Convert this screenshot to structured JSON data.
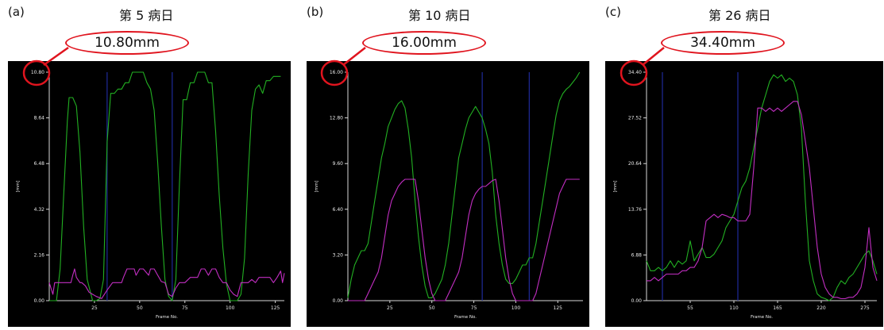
{
  "figure": {
    "colors": {
      "background": "#000000",
      "axes": "#d8d8d8",
      "text": "#e8e8e8",
      "highlight": "#e0141e",
      "series_green": "#22b022",
      "series_magenta": "#c22ec2",
      "marker": "#1e2a9a"
    }
  },
  "panels": [
    {
      "letter": "(a)",
      "title": "第 5 病日",
      "callout": "10.80mm"
    },
    {
      "letter": "(b)",
      "title": "第 10 病日",
      "callout": "16.00mm"
    },
    {
      "letter": "(c)",
      "title": "第 26 病日",
      "callout": "34.40mm"
    }
  ],
  "chart_data": [
    {
      "type": "line",
      "xlabel": "Frame No.",
      "ylabel": "[mm]",
      "xlim": [
        0,
        130
      ],
      "ylim": [
        0,
        10.8
      ],
      "xticks": [
        25,
        50,
        75,
        100,
        125
      ],
      "yticks": [
        "0.00",
        "2.16",
        "4.32",
        "6.48",
        "8.64",
        "10.80"
      ],
      "markers_x": [
        32,
        68
      ],
      "series": [
        {
          "color": "green",
          "x": [
            0,
            4,
            6,
            8,
            10,
            11,
            13,
            15,
            17,
            19,
            21,
            24,
            26,
            28,
            30,
            32,
            34,
            36,
            38,
            40,
            42,
            44,
            46,
            48,
            50,
            52,
            54,
            56,
            58,
            60,
            62,
            64,
            66,
            68,
            70,
            72,
            74,
            76,
            78,
            80,
            82,
            84,
            86,
            88,
            90,
            92,
            94,
            96,
            98,
            100,
            102,
            104,
            106,
            108,
            110,
            112,
            114,
            116,
            118,
            120,
            122,
            124,
            126,
            128
          ],
          "y": [
            0,
            0,
            1.5,
            5,
            8.5,
            9.6,
            9.6,
            9.2,
            7,
            3.5,
            1,
            0,
            0,
            0.1,
            1,
            7.5,
            9.8,
            9.8,
            10,
            10,
            10.3,
            10.3,
            10.8,
            10.8,
            10.8,
            10.8,
            10.3,
            10,
            9,
            6.5,
            3.5,
            1,
            0.2,
            0,
            1,
            5.5,
            9.5,
            9.5,
            10.3,
            10.3,
            10.8,
            10.8,
            10.8,
            10.3,
            10.3,
            8,
            5,
            2.5,
            0.8,
            0,
            0,
            0,
            0.3,
            2,
            6,
            9,
            10,
            10.2,
            9.8,
            10.4,
            10.4,
            10.6,
            10.6,
            10.6
          ]
        },
        {
          "color": "magenta",
          "x": [
            0,
            2,
            3,
            5,
            8,
            12,
            13,
            14,
            15,
            17,
            18,
            20,
            22,
            24,
            26,
            29,
            32,
            35,
            37,
            40,
            41,
            43,
            47,
            48,
            50,
            52,
            55,
            56,
            58,
            60,
            62,
            64,
            66,
            68,
            70,
            72,
            75,
            78,
            82,
            84,
            86,
            88,
            90,
            92,
            94,
            96,
            98,
            100,
            102,
            104,
            106,
            108,
            110,
            112,
            114,
            116,
            118,
            120,
            122,
            124,
            126,
            128,
            129,
            130
          ],
          "y": [
            0.85,
            0.3,
            0.85,
            0.85,
            0.85,
            0.85,
            1.2,
            1.5,
            1.1,
            0.85,
            0.85,
            0.7,
            0.4,
            0.3,
            0.2,
            0.1,
            0.5,
            0.85,
            0.85,
            0.85,
            1.1,
            1.5,
            1.5,
            1.2,
            1.5,
            1.5,
            1.2,
            1.5,
            1.5,
            1.2,
            0.9,
            0.85,
            0.3,
            0.2,
            0.6,
            0.85,
            0.85,
            1.1,
            1.1,
            1.5,
            1.5,
            1.2,
            1.5,
            1.5,
            1.1,
            0.85,
            0.85,
            0.5,
            0.3,
            0.2,
            0.85,
            0.85,
            0.85,
            1.0,
            0.85,
            1.1,
            1.1,
            1.1,
            1.1,
            0.85,
            1.1,
            1.4,
            0.85,
            1.3
          ]
        }
      ]
    },
    {
      "type": "line",
      "xlabel": "Frame No.",
      "ylabel": "[mm]",
      "xlim": [
        0,
        140
      ],
      "ylim": [
        0,
        16
      ],
      "xticks": [
        25,
        50,
        75,
        100,
        125
      ],
      "yticks": [
        "0.00",
        "3.20",
        "6.40",
        "9.60",
        "12.80",
        "16.00"
      ],
      "markers_x": [
        80,
        108
      ],
      "series": [
        {
          "color": "green",
          "x": [
            0,
            2,
            4,
            6,
            8,
            10,
            12,
            14,
            16,
            18,
            20,
            22,
            24,
            26,
            28,
            30,
            32,
            34,
            36,
            38,
            40,
            42,
            44,
            46,
            48,
            50,
            52,
            54,
            56,
            58,
            60,
            62,
            64,
            66,
            68,
            70,
            72,
            74,
            76,
            78,
            80,
            82,
            84,
            86,
            88,
            90,
            92,
            94,
            96,
            98,
            100,
            102,
            104,
            106,
            108,
            110,
            112,
            114,
            116,
            118,
            120,
            122,
            124,
            126,
            128,
            130,
            132,
            134,
            136,
            138
          ],
          "y": [
            0.2,
            1.5,
            2.5,
            3,
            3.5,
            3.5,
            4,
            5.5,
            7,
            8.5,
            10,
            11,
            12.2,
            12.8,
            13.4,
            13.8,
            14,
            13.5,
            12,
            10,
            7,
            4.5,
            2.5,
            1,
            0.2,
            0.2,
            0.5,
            1,
            1.5,
            2.5,
            4,
            6,
            8,
            10,
            11,
            12,
            12.8,
            13.2,
            13.6,
            13.2,
            12.8,
            12,
            11,
            9,
            6,
            4,
            2.5,
            1.5,
            1.2,
            1.2,
            1.5,
            2,
            2.5,
            2.5,
            3,
            3,
            4,
            5.5,
            7,
            8.5,
            10,
            11.5,
            13,
            14,
            14.5,
            14.8,
            15,
            15.3,
            15.6,
            16
          ]
        },
        {
          "color": "magenta",
          "x": [
            0,
            10,
            12,
            14,
            16,
            18,
            20,
            22,
            24,
            26,
            28,
            30,
            32,
            34,
            36,
            38,
            40,
            42,
            44,
            46,
            48,
            50,
            52,
            54,
            56,
            58,
            60,
            62,
            64,
            66,
            68,
            70,
            72,
            74,
            76,
            78,
            80,
            82,
            84,
            86,
            88,
            90,
            92,
            94,
            96,
            98,
            100,
            102,
            104,
            106,
            108,
            110,
            112,
            114,
            116,
            118,
            120,
            122,
            124,
            126,
            128,
            130,
            132,
            134,
            136,
            138
          ],
          "y": [
            0,
            0,
            0.5,
            1,
            1.5,
            2,
            3,
            4.5,
            6,
            7,
            7.5,
            8,
            8.3,
            8.5,
            8.5,
            8.5,
            8.5,
            7,
            5,
            3,
            1.5,
            0.5,
            0,
            0,
            0,
            0,
            0.5,
            1,
            1.5,
            2,
            3,
            4.5,
            6,
            7,
            7.5,
            7.8,
            8,
            8,
            8.2,
            8.4,
            8.5,
            7,
            5,
            3,
            1.5,
            0.5,
            0,
            0,
            0,
            0,
            0,
            0,
            0.5,
            1.5,
            2.5,
            3.5,
            4.5,
            5.5,
            6.5,
            7.5,
            8,
            8.5,
            8.5,
            8.5,
            8.5,
            8.5
          ]
        }
      ]
    },
    {
      "type": "line",
      "xlabel": "Frame No.",
      "ylabel": "[mm]",
      "xlim": [
        0,
        290
      ],
      "ylim": [
        0,
        34.4
      ],
      "xticks": [
        55,
        110,
        165,
        220,
        275
      ],
      "yticks": [
        "0.00",
        "6.88",
        "13.76",
        "20.64",
        "27.52",
        "34.40"
      ],
      "markers_x": [
        20,
        115
      ],
      "series": [
        {
          "color": "green",
          "x": [
            0,
            5,
            10,
            15,
            20,
            25,
            30,
            35,
            40,
            45,
            50,
            55,
            60,
            65,
            70,
            75,
            80,
            85,
            90,
            95,
            100,
            105,
            110,
            115,
            120,
            125,
            130,
            135,
            140,
            145,
            150,
            155,
            160,
            165,
            170,
            175,
            180,
            185,
            190,
            195,
            200,
            205,
            210,
            215,
            220,
            225,
            230,
            235,
            240,
            245,
            250,
            255,
            260,
            265,
            270,
            275,
            280,
            285,
            290
          ],
          "y": [
            6,
            4.5,
            4.5,
            5,
            4.5,
            5,
            6,
            5,
            6,
            5.5,
            6,
            9,
            6,
            7,
            8,
            6.5,
            6.5,
            7,
            8,
            9,
            11,
            12,
            13,
            15,
            17,
            18,
            20,
            23,
            26,
            29,
            31,
            33,
            34,
            33.5,
            34,
            33,
            33.5,
            33,
            31,
            26,
            15,
            6,
            3,
            1,
            0.5,
            0.3,
            0,
            0.5,
            2,
            3,
            2.5,
            3.5,
            4,
            5,
            6,
            7,
            7.5,
            6,
            4
          ]
        },
        {
          "color": "magenta",
          "x": [
            0,
            5,
            10,
            15,
            20,
            25,
            30,
            35,
            40,
            45,
            50,
            55,
            60,
            65,
            70,
            75,
            80,
            85,
            90,
            95,
            100,
            105,
            110,
            115,
            120,
            125,
            130,
            135,
            140,
            145,
            150,
            155,
            160,
            165,
            170,
            175,
            180,
            185,
            190,
            195,
            200,
            205,
            210,
            215,
            220,
            225,
            230,
            235,
            240,
            245,
            250,
            255,
            260,
            265,
            270,
            275,
            280,
            285,
            290
          ],
          "y": [
            3,
            3,
            3.5,
            3,
            3.5,
            4,
            4,
            4,
            4,
            4.5,
            4.5,
            5,
            5,
            6,
            8,
            12,
            12.5,
            13,
            12.5,
            13,
            12.8,
            12.5,
            12.5,
            12,
            12,
            12,
            13,
            20,
            29,
            29,
            28.5,
            29,
            28.5,
            29,
            28.5,
            29,
            29.5,
            30,
            30,
            28,
            24,
            20,
            14,
            8,
            4,
            2,
            1,
            0.5,
            0.5,
            0.3,
            0.3,
            0.5,
            0.5,
            1,
            2,
            5,
            11,
            5,
            3
          ]
        }
      ]
    }
  ]
}
